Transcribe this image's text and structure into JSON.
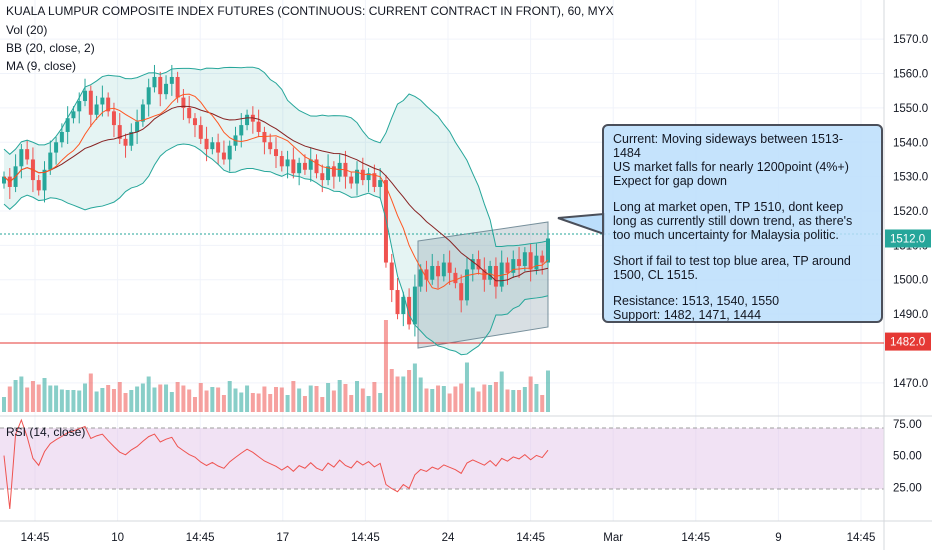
{
  "legend": {
    "title": "KUALA LUMPUR COMPOSITE INDEX FUTURES (CONTINUOUS: CURRENT CONTRACT IN FRONT), 60, MYX",
    "vol": "Vol (20)",
    "bb": "BB (20, close, 2)",
    "ma": "MA (9, close)",
    "rsi": "RSI (14, close)"
  },
  "note": {
    "p1": [
      "Current: Moving sideways between 1513-",
      "1484",
      "US market falls for nearly 1200point (4%+)",
      "Expect for gap down"
    ],
    "p2": [
      "Long at market open, TP 1510, dont keep",
      "long as currently still down trend, as there's",
      "too much uncertainty for Malaysia politic."
    ],
    "p3": [
      "Short if fail to test top blue area, TP around",
      "1500, CL 1515."
    ],
    "p4": [
      "Resistance: 1513, 1540, 1550",
      "Support: 1482, 1471, 1444"
    ]
  },
  "colors": {
    "up": "#26a69a",
    "down": "#ef5350",
    "bb_band": "#26a69a",
    "ma": "#ff5722",
    "basis": "#872323",
    "rsi": "#ef5350",
    "rsi_band": "#e1bee7",
    "support_line": "#e53935",
    "price_line": "#26a69a",
    "note_fill": "#bbdefb",
    "channel_fill": "#90a4ae"
  },
  "chart_data": {
    "type": "candlestick",
    "x_tick_labels": [
      "14:45",
      "10",
      "14:45",
      "17",
      "14:45",
      "24",
      "14:45",
      "Mar",
      "14:45",
      "9",
      "14:45"
    ],
    "price_axis": {
      "ticks": [
        "1570.0",
        "1560.0",
        "1550.0",
        "1540.0",
        "1530.0",
        "1520.0",
        "1510.0",
        "1500.0",
        "1490.0",
        "1470.0"
      ],
      "range": [
        1465,
        1575
      ]
    },
    "price_labels": {
      "last": "1512.0",
      "support": "1482.0"
    },
    "last_price": 1512.0,
    "horizontal_line": 1482.0,
    "rsi_axis": {
      "ticks": [
        "75.00",
        "50.00",
        "25.00"
      ],
      "range": [
        8,
        78
      ],
      "band": [
        30,
        70
      ]
    },
    "indicators": [
      "Vol (20)",
      "BB (20, close, 2)",
      "MA (9, close)",
      "RSI (14, close)"
    ],
    "candles_close": [
      1530,
      1527,
      1533,
      1538,
      1535,
      1529,
      1526,
      1532,
      1537,
      1540,
      1543,
      1547,
      1549,
      1552,
      1555,
      1548,
      1551,
      1553,
      1549,
      1545,
      1541,
      1539,
      1543,
      1546,
      1551,
      1556,
      1559,
      1554,
      1557,
      1559,
      1553,
      1550,
      1547,
      1545,
      1541,
      1538,
      1540,
      1537,
      1535,
      1539,
      1542,
      1545,
      1548,
      1546,
      1543,
      1540,
      1538,
      1536,
      1533,
      1535,
      1531,
      1534,
      1532,
      1535,
      1531,
      1529,
      1533,
      1530,
      1534,
      1530,
      1528,
      1532,
      1529,
      1531,
      1527,
      1529,
      1505,
      1497,
      1490,
      1495,
      1487,
      1498,
      1503,
      1500,
      1504,
      1501,
      1505,
      1502,
      1499,
      1494,
      1503,
      1506,
      1503,
      1500,
      1504,
      1498,
      1505,
      1502,
      1506,
      1504,
      1508,
      1503,
      1507,
      1505,
      1512
    ]
  }
}
